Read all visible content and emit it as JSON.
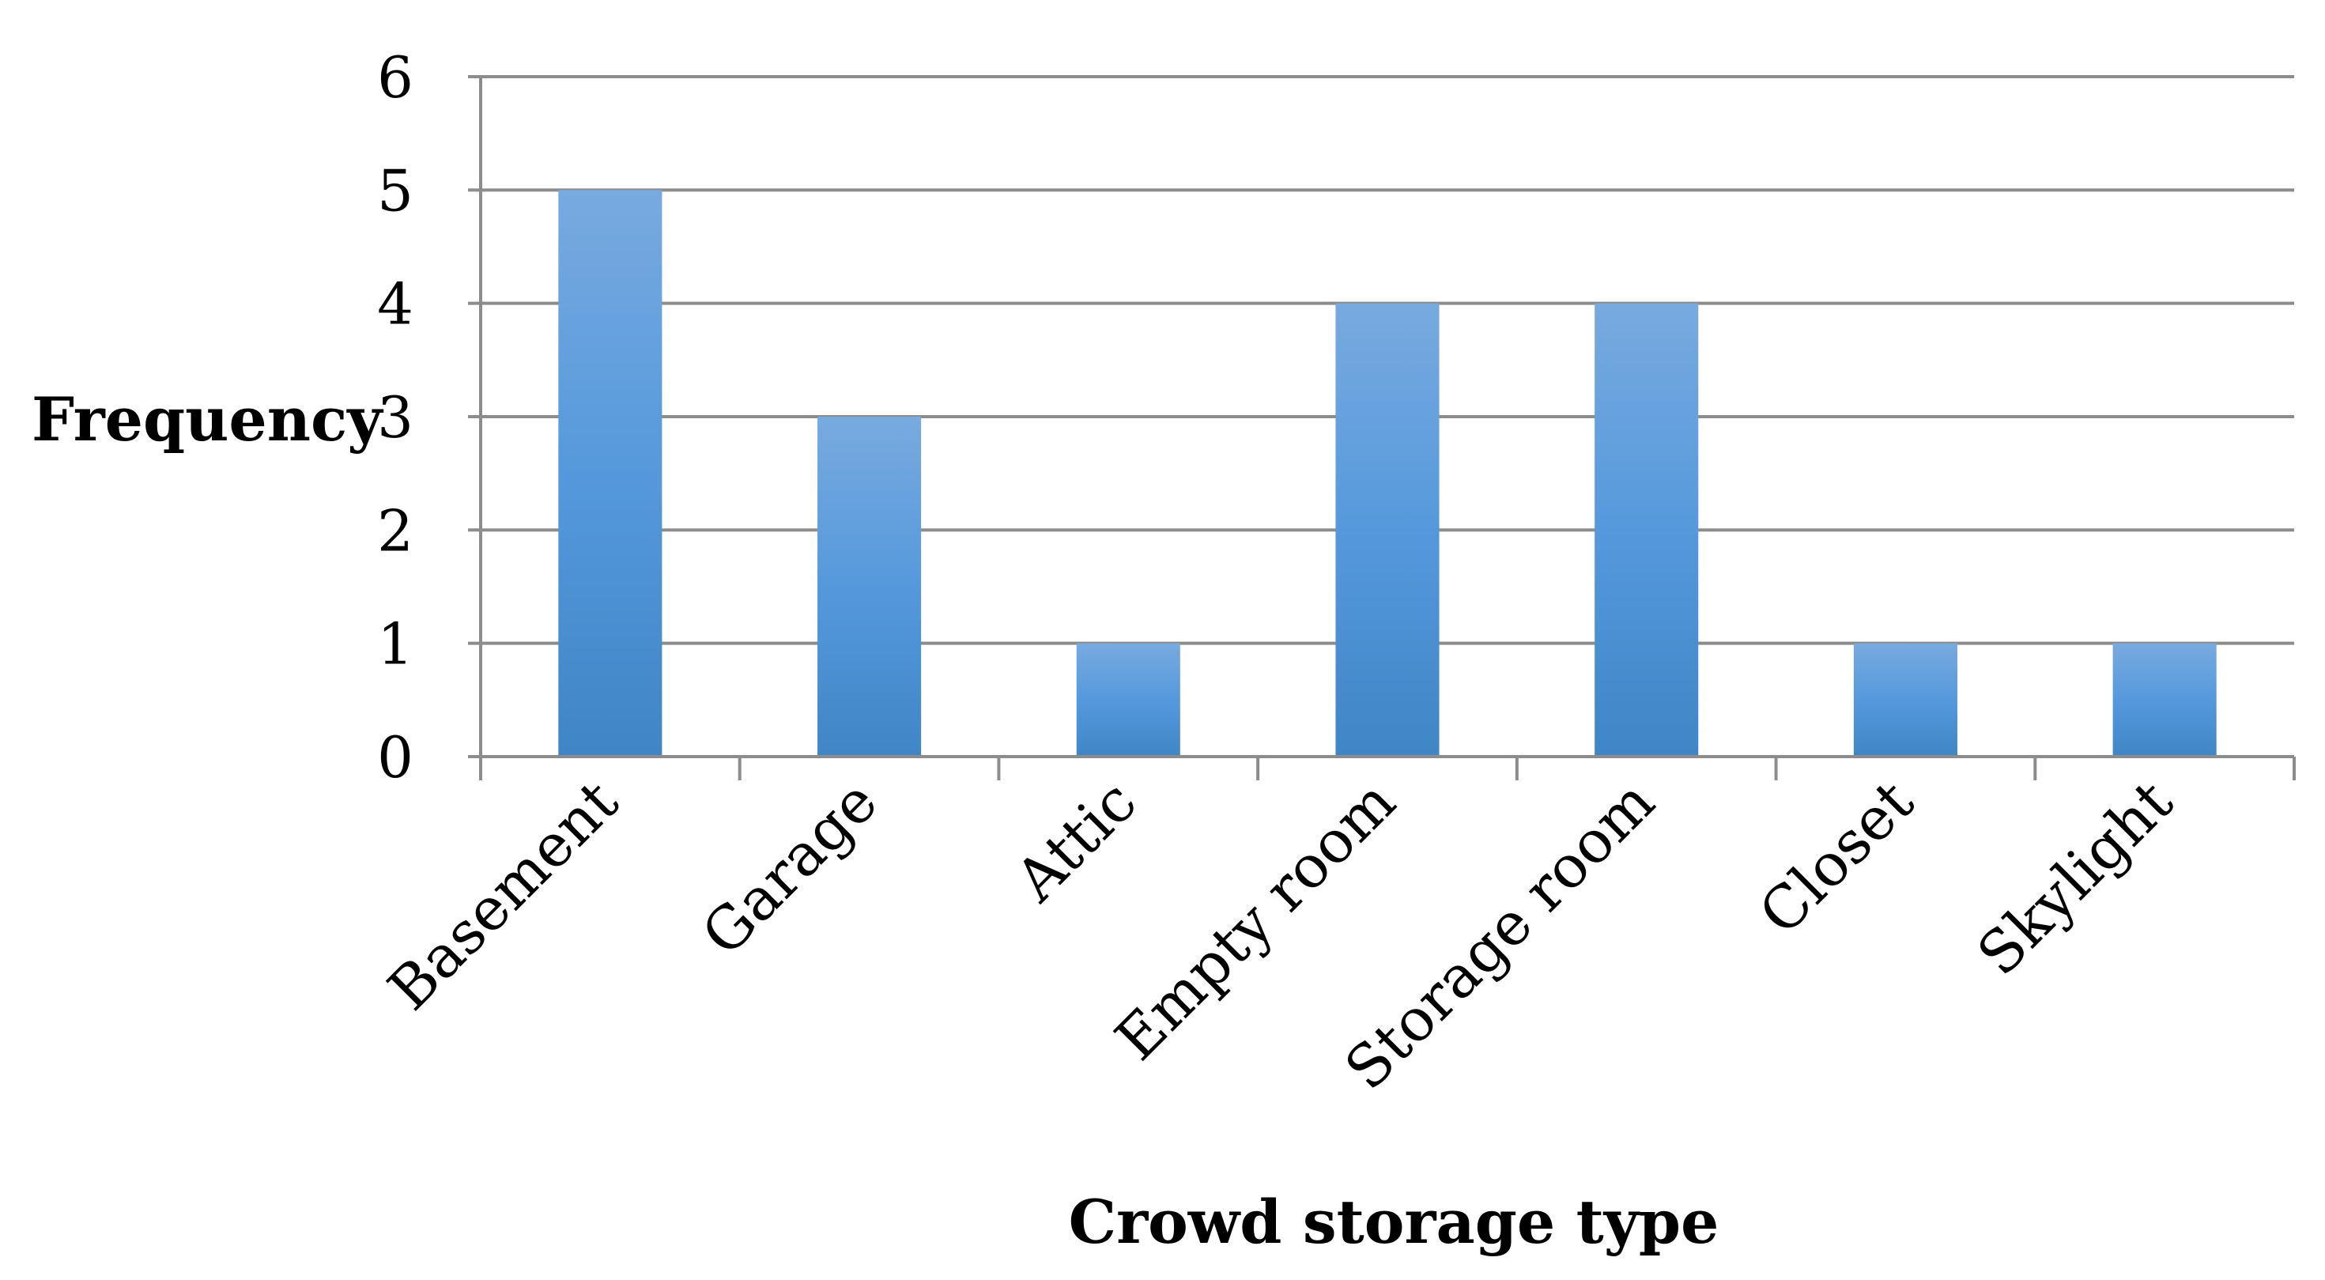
{
  "chart_data": {
    "type": "bar",
    "title": "",
    "xlabel": "Crowd storage type",
    "ylabel": "Frequency",
    "categories": [
      "Basement",
      "Garage",
      "Attic",
      "Empty room",
      "Storage room",
      "Closet",
      "Skylight"
    ],
    "values": [
      5,
      3,
      1,
      4,
      4,
      1,
      1
    ],
    "ylim": [
      0,
      6
    ],
    "yticks": [
      "0",
      "1",
      "2",
      "3",
      "4",
      "5",
      "6"
    ],
    "grid": true,
    "legend": "none",
    "colors": {
      "bar_top": "#78aadf",
      "bar_mid": "#5599dc",
      "bar_bottom": "#3f86c6",
      "grid": "#8c8c8c",
      "axis": "#8c8c8c"
    }
  }
}
